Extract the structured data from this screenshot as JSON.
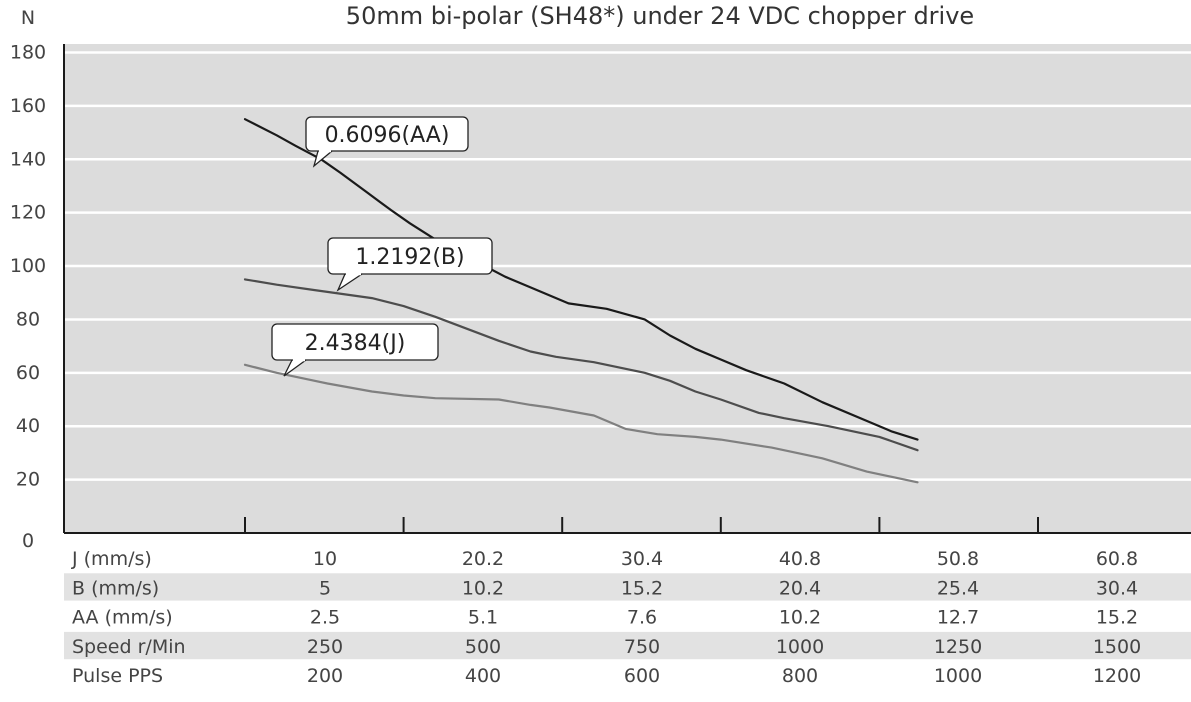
{
  "chart_data": {
    "type": "line",
    "title": "50mm bi-polar (SH48*) under 24 VDC chopper drive",
    "ylabel": "N",
    "ylim": [
      0,
      180
    ],
    "y_ticks": [
      "0",
      "20",
      "40",
      "60",
      "80",
      "100",
      "120",
      "140",
      "160",
      "180"
    ],
    "x_ticks": [
      250,
      500,
      750,
      1000,
      1250,
      1500
    ],
    "grid": true,
    "colors": {
      "plot_bg": "#dcdcdc",
      "AA": "#1a1a1a",
      "B": "#4d4d4d",
      "J": "#808080"
    },
    "series": [
      {
        "name": "0.6096(AA)",
        "key": "AA",
        "x": [
          250,
          300,
          330,
          370,
          400,
          440,
          480,
          510,
          550,
          580,
          620,
          660,
          700,
          730,
          760,
          820,
          880,
          920,
          960,
          1000,
          1040,
          1100,
          1160,
          1230,
          1270,
          1310
        ],
        "y": [
          155,
          149,
          145,
          140,
          135,
          128,
          121,
          116,
          110,
          106,
          101,
          96,
          92,
          89,
          86,
          84,
          80,
          74,
          69,
          65,
          61,
          56,
          49,
          42,
          38,
          35
        ]
      },
      {
        "name": "1.2192(B)",
        "key": "B",
        "x": [
          250,
          300,
          360,
          450,
          500,
          550,
          650,
          700,
          740,
          800,
          880,
          920,
          960,
          1000,
          1060,
          1100,
          1170,
          1250,
          1310
        ],
        "y": [
          95,
          93,
          91,
          88,
          85,
          81,
          72,
          68,
          66,
          64,
          60,
          57,
          53,
          50,
          45,
          43,
          40,
          36,
          31
        ]
      },
      {
        "name": "2.4384(J)",
        "key": "J",
        "x": [
          250,
          300,
          380,
          450,
          500,
          550,
          650,
          700,
          730,
          800,
          850,
          900,
          960,
          1000,
          1080,
          1160,
          1230,
          1310
        ],
        "y": [
          63,
          60,
          56,
          53,
          51.5,
          50.5,
          50,
          48,
          47,
          44,
          39,
          37,
          36,
          35,
          32,
          28,
          23,
          19
        ]
      }
    ],
    "callouts": [
      {
        "label": "0.6096(AA)",
        "key": "AA"
      },
      {
        "label": "1.2192(B)",
        "key": "B"
      },
      {
        "label": "2.4384(J)",
        "key": "J"
      }
    ],
    "table": {
      "rows": [
        {
          "label": "J (mm/s)",
          "values": [
            "10",
            "20.2",
            "30.4",
            "40.8",
            "50.8",
            "60.8"
          ],
          "shaded": false
        },
        {
          "label": "B (mm/s)",
          "values": [
            "5",
            "10.2",
            "15.2",
            "20.4",
            "25.4",
            "30.4"
          ],
          "shaded": true
        },
        {
          "label": "AA (mm/s)",
          "values": [
            "2.5",
            "5.1",
            "7.6",
            "10.2",
            "12.7",
            "15.2"
          ],
          "shaded": false
        },
        {
          "label": "Speed  r/Min",
          "values": [
            "250",
            "500",
            "750",
            "1000",
            "1250",
            "1500"
          ],
          "shaded": true
        },
        {
          "label": "Pulse   PPS",
          "values": [
            "200",
            "400",
            "600",
            "800",
            "1000",
            "1200"
          ],
          "shaded": false
        }
      ]
    }
  }
}
